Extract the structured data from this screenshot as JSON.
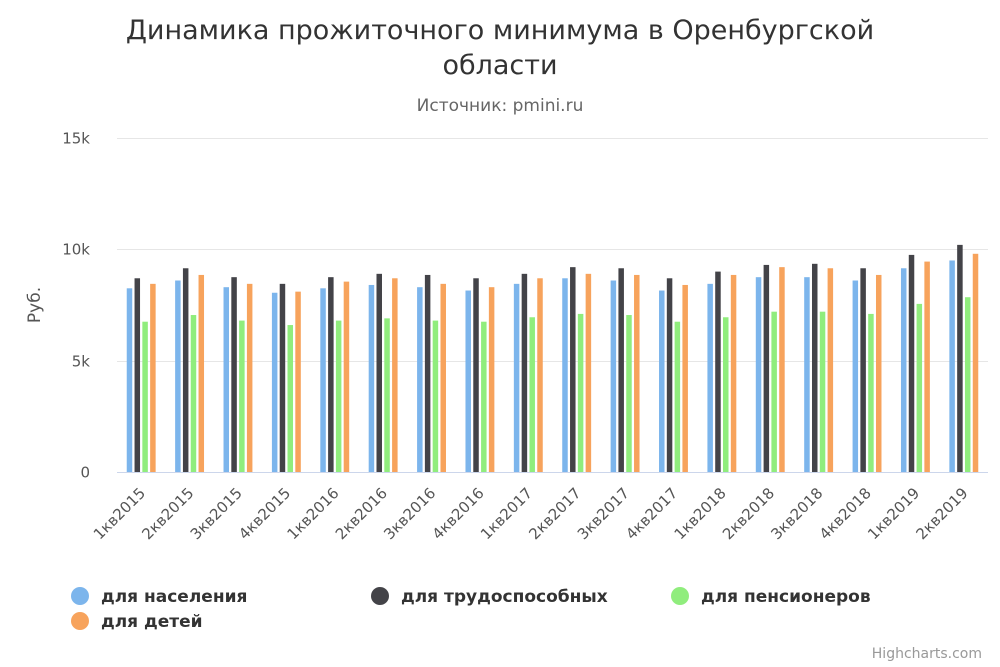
{
  "chart_data": {
    "type": "bar",
    "title_line1": "Динамика прожиточного минимума в Оренбургской",
    "title_line2": "области",
    "subtitle": "Источник: pmini.ru",
    "ylabel": "Руб.",
    "xlabel": "",
    "ylim": [
      0,
      15000
    ],
    "yticks": [
      0,
      5000,
      10000,
      15000
    ],
    "ytick_labels": [
      "0",
      "5k",
      "10k",
      "15k"
    ],
    "grid": true,
    "legend_position": "bottom-left",
    "categories": [
      "1кв2015",
      "2кв2015",
      "3кв2015",
      "4кв2015",
      "1кв2016",
      "2кв2016",
      "3кв2016",
      "4кв2016",
      "1кв2017",
      "2кв2017",
      "3кв2017",
      "4кв2017",
      "1кв2018",
      "2кв2018",
      "3кв2018",
      "4кв2018",
      "1кв2019",
      "2кв2019"
    ],
    "series": [
      {
        "name": "для населения",
        "color": "#7cb5ec",
        "values": [
          8250,
          8600,
          8300,
          8050,
          8250,
          8400,
          8300,
          8150,
          8450,
          8700,
          8600,
          8150,
          8450,
          8750,
          8750,
          8600,
          9150,
          9500
        ]
      },
      {
        "name": "для трудоспособных",
        "color": "#434348",
        "values": [
          8700,
          9150,
          8750,
          8450,
          8750,
          8900,
          8850,
          8700,
          8900,
          9200,
          9150,
          8700,
          9000,
          9300,
          9350,
          9150,
          9750,
          10200
        ]
      },
      {
        "name": "для пенсионеров",
        "color": "#90ed7d",
        "values": [
          6750,
          7050,
          6800,
          6600,
          6800,
          6900,
          6800,
          6750,
          6950,
          7100,
          7050,
          6750,
          6950,
          7200,
          7200,
          7100,
          7550,
          7850
        ]
      },
      {
        "name": "для детей",
        "color": "#f7a35c",
        "values": [
          8450,
          8850,
          8450,
          8100,
          8550,
          8700,
          8450,
          8300,
          8700,
          8900,
          8850,
          8400,
          8850,
          9200,
          9150,
          8850,
          9450,
          9800
        ]
      }
    ]
  },
  "credits": "Highcharts.com"
}
